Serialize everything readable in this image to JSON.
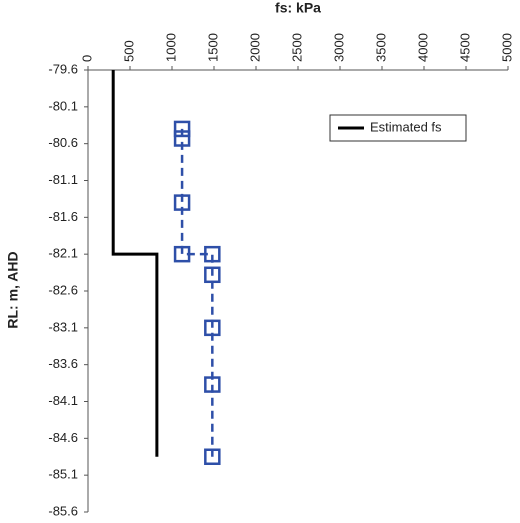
{
  "chart_data": {
    "type": "scatter",
    "x_label": "fs: kPa",
    "y_label": "RL: m, AHD",
    "xlim": [
      0,
      5000
    ],
    "xticks": [
      0,
      500,
      1000,
      1500,
      2000,
      2500,
      3000,
      3500,
      4000,
      4500,
      5000
    ],
    "ylim": [
      -85.6,
      -79.6
    ],
    "yticks": [
      -79.6,
      -80.1,
      -80.6,
      -81.1,
      -81.6,
      -82.1,
      -82.6,
      -83.1,
      -83.6,
      -84.1,
      -84.6,
      -85.1,
      -85.6
    ],
    "x_axis_position": "top",
    "y_inverted": true,
    "legend": "top-right",
    "series": [
      {
        "name": "Estimated fs",
        "color": "#000000",
        "style": "solid",
        "x": [
          300,
          300,
          820,
          820
        ],
        "values": [
          -79.6,
          -82.1,
          -82.1,
          -84.85
        ]
      },
      {
        "color": "#2e4fa8",
        "style": "dashed",
        "marker": "square",
        "x": [
          1120,
          1120,
          1120,
          1120,
          1480,
          1480,
          1480,
          1480,
          1480
        ],
        "values": [
          -80.4,
          -80.53,
          -81.4,
          -82.1,
          -82.1,
          -82.38,
          -83.1,
          -83.87,
          -84.85
        ]
      }
    ]
  }
}
